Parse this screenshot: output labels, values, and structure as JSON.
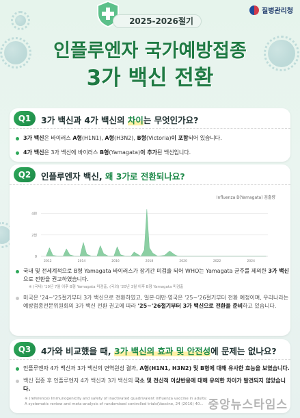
{
  "logo": {
    "text": "질병관리청",
    "icon": "kdca-logo-icon"
  },
  "header": {
    "season": "2025-2026절기",
    "title_line1": "인플루엔자 국가예방접종",
    "title_line2": "3가 백신 전환",
    "shield_icon": "shield-plus-icon"
  },
  "colors": {
    "accent": "#1f7a43",
    "badge": "#2fa85a",
    "highlight": "#fff1a6",
    "chart_fill": "#8ccfa3"
  },
  "q1": {
    "badge": "Q1",
    "question_a": "3가 백신과 4가 백신의 ",
    "question_hl": "차이",
    "question_b": "는 무엇인가요?",
    "bullets": [
      {
        "bold_a": "3가 백신",
        "mid_a": "은 바이러스 ",
        "bold_b": "A형",
        "mid_b": "(H1N1), ",
        "bold_c": "A형",
        "mid_c": "(H3N2), ",
        "bold_d": "B형",
        "mid_d": "(Victoria)",
        "bold_e": "이 포함",
        "end": "되어 있습니다."
      },
      {
        "bold_a": "4가 백신",
        "mid_a": "은 3가 백신에 바이러스 ",
        "bold_b": "B형",
        "mid_b": "(Yamagata)",
        "bold_c": "이 추가",
        "end": "된 백신입니다."
      }
    ]
  },
  "q2": {
    "badge": "Q2",
    "question_a": "인플루엔자 백신, ",
    "question_hl": "왜 3가로 전환되나요?",
    "bullet1_a": "국내 및 전세계적으로 B형 Yamagata 바이러스가 장기간 미검출 되어 WHO는 Yamagata 균주를 제외한 ",
    "bullet1_b": "3가 백신",
    "bullet1_c": "으로 전환을 권고하였습니다.",
    "note1": "※ (국내) '19년 7월 이후 B형 Yamagata 미검출, (국외) '20년 3월 이후 B형 Yamagata 미검출",
    "bullet2_a": "미국은 '24~'25절기부터 3가 백신으로 전환하였고, 일본·대만·영국은 '25~'26절기부터 전환 예정이며, 우리나라는 예방접종전문위원회의 3가 백신 전환 권고에 따라 ",
    "bullet2_b": "'25~'26절기부터 3가 백신으로 전환을 준비",
    "bullet2_c": "하고 있습니다."
  },
  "q3": {
    "badge": "Q3",
    "question_a": "4가와 비교했을 때, ",
    "question_hl": "3가 백신의 효과 및 안전성",
    "question_b": "에 문제는 없나요?",
    "bullet1_a": "인플루엔자 4가 백신과 3가 백신의 면역원성 결과, ",
    "bullet1_b": "A형(H1N1, H3N2) 및 B형에 대해 유사한 효능을 보였습니다.",
    "bullet2_a": "백신 접종 후 인플루엔자 4가 백신과 3가 백신의 ",
    "bullet2_b": "국소 및 전신적 이상반응에 대해 유의한 차이가 발견되지 않았습니다.",
    "reference_a": "※ (reference) Immunogenicity and safety of inactivated quadrivalent influenza vaccine in adults:",
    "reference_b": "A systematic review and meta-analysis of randomised controlled trials(Vaccine, 24 (2016) 40..."
  },
  "watermark": "중앙뉴스타임스",
  "chart_data": {
    "type": "area",
    "title": "",
    "legend": "Influenza B(Yamagata) 검출량",
    "legend_position": "top-right",
    "xlabel": "",
    "ylabel": "",
    "x_ticks": [
      "2012",
      "2014",
      "2016",
      "2018",
      "2020",
      "2022",
      "2024"
    ],
    "y_ticks": [
      "0",
      "2천",
      "4천"
    ],
    "ylim": [
      0,
      5000
    ],
    "xlim": [
      2011.6,
      2025.0
    ],
    "grid": true,
    "series": [
      {
        "x": [
          2011.9,
          2012.1,
          2012.3,
          2012.6,
          2012.9,
          2013.1,
          2013.3,
          2013.6,
          2013.9,
          2014.1,
          2014.3,
          2014.6,
          2014.9,
          2015.1,
          2015.3,
          2015.6,
          2015.9,
          2016.1,
          2016.3,
          2016.6,
          2016.9,
          2017.1,
          2017.3,
          2017.5,
          2017.7,
          2017.85,
          2018.0,
          2018.2,
          2018.5,
          2018.9,
          2019.2,
          2019.5,
          2019.7,
          2020.0,
          2024.9
        ],
        "values": [
          0,
          800,
          100,
          0,
          0,
          700,
          150,
          0,
          0,
          1300,
          200,
          0,
          0,
          1000,
          250,
          0,
          0,
          900,
          150,
          0,
          0,
          400,
          200,
          0,
          600,
          4400,
          800,
          300,
          0,
          100,
          500,
          150,
          0,
          0,
          0
        ]
      }
    ]
  }
}
